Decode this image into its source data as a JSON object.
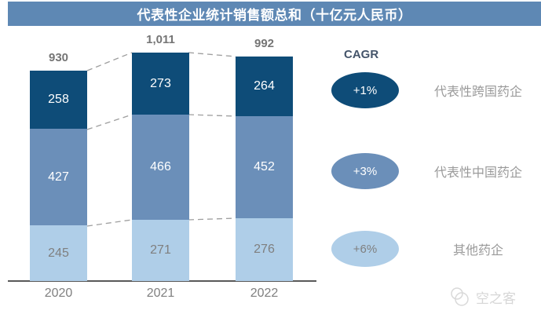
{
  "title": "代表性企业统计销售额总和（十亿元人民币）",
  "chart_data": {
    "type": "bar",
    "stacked": true,
    "title": "代表性企业统计销售额总和（十亿元人民币）",
    "categories": [
      "2020",
      "2021",
      "2022"
    ],
    "series": [
      {
        "name": "代表性跨国药企",
        "color": "#0e4c78",
        "values": [
          258,
          273,
          264
        ]
      },
      {
        "name": "代表性中国药企",
        "color": "#6b8fb9",
        "values": [
          427,
          466,
          452
        ]
      },
      {
        "name": "其他药企",
        "color": "#afcee8",
        "values": [
          245,
          271,
          276
        ]
      }
    ],
    "totals": [
      "930",
      "1,011",
      "992"
    ],
    "ylim": [
      0,
      1011
    ],
    "grid": false,
    "legend_position": "right"
  },
  "legend": {
    "heading": "CAGR",
    "items": [
      {
        "cagr": "+1%",
        "label": "代表性跨国药企",
        "color": "#0e4c78"
      },
      {
        "cagr": "+3%",
        "label": "代表性中国药企",
        "color": "#6b8fb9"
      },
      {
        "cagr": "+6%",
        "label": "其他药企",
        "color": "#afcee8"
      }
    ]
  },
  "watermark": {
    "text": "空之客"
  },
  "colors": {
    "banner": "#5e88b4",
    "dark_blue": "#0e4c78",
    "medium_blue": "#6b8fb9",
    "light_blue": "#afcee8",
    "axis": "#595959",
    "dashed_line": "#9e9e9e",
    "gray_text": "#7f7f7f"
  }
}
